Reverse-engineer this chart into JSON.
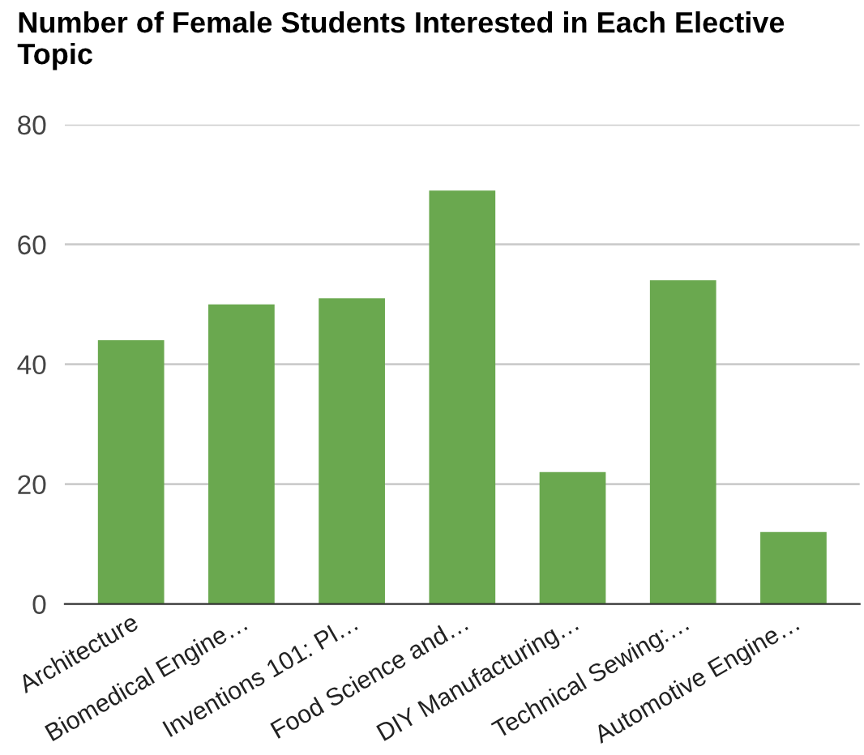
{
  "chart_data": {
    "type": "bar",
    "title": "Number of Female Students Interested in Each Elective Topic",
    "categories": [
      "Architecture",
      "Biomedical Engine…",
      "Inventions 101: Pl…",
      "Food Science and…",
      "DIY Manufacturing…",
      "Technical Sewing:…",
      "Automotive Engine…"
    ],
    "values": [
      44,
      50,
      51,
      69,
      22,
      54,
      12
    ],
    "color": "#6aa84f",
    "ylim": [
      0,
      80
    ],
    "yticks": [
      0,
      20,
      40,
      60,
      80
    ],
    "grid": "y"
  }
}
